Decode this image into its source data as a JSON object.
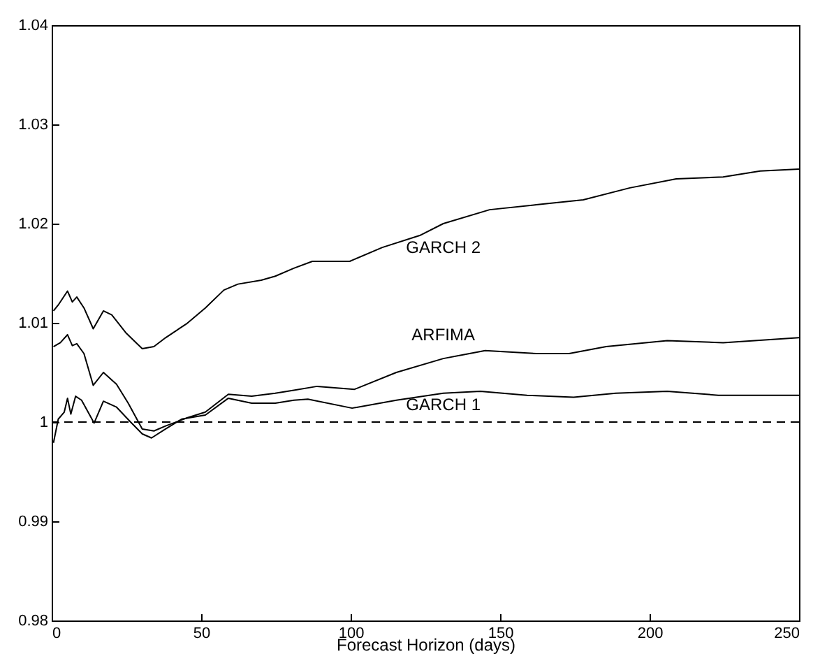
{
  "chart_data": {
    "type": "line",
    "xlabel": "Forecast Horizon (days)",
    "xlim": [
      0,
      250
    ],
    "xticks": [
      0,
      50,
      100,
      150,
      200,
      250
    ],
    "ylim": [
      0.98,
      1.04
    ],
    "yticks": [
      0.98,
      0.99,
      1,
      1.01,
      1.02,
      1.03,
      1.04
    ],
    "grid": false,
    "line_style": "solid",
    "ref_lines": [
      {
        "axis": "y",
        "value": 1,
        "line_style": "dashed",
        "color": "#000000"
      }
    ],
    "series": [
      {
        "name": "GARCH 2",
        "color": "#000000",
        "x": [
          0.6,
          2.2,
          5.3,
          6.9,
          8.4,
          10.8,
          13.9,
          17.3,
          20.1,
          24.8,
          30.3,
          34.2,
          38.1,
          45.1,
          51.4,
          57.6,
          62.3,
          70.1,
          74.8,
          81,
          87.2,
          99.7,
          110.6,
          123.1,
          131,
          146.5,
          162.1,
          177.8,
          193.4,
          208.9,
          224.6,
          237,
          250
        ],
        "values": [
          1.0112,
          1.0118,
          1.0132,
          1.0121,
          1.0126,
          1.0115,
          1.0094,
          1.0112,
          1.0108,
          1.009,
          1.0074,
          1.0076,
          1.0085,
          1.0099,
          1.0115,
          1.0133,
          1.0139,
          1.0143,
          1.0147,
          1.0155,
          1.0162,
          1.0162,
          1.0176,
          1.0188,
          1.02,
          1.0214,
          1.0219,
          1.0224,
          1.0236,
          1.0245,
          1.0247,
          1.0253,
          1.0255
        ]
      },
      {
        "name": "ARFIMA",
        "color": "#000000",
        "x": [
          0.6,
          2.9,
          5.3,
          6.9,
          8.4,
          10.8,
          13.9,
          17.3,
          21.7,
          25.6,
          30.3,
          34.2,
          38.1,
          45.1,
          51.4,
          59.1,
          66.9,
          74.8,
          81,
          88.8,
          101.3,
          115.3,
          131,
          145,
          162.1,
          173.1,
          185.5,
          205.9,
          224.6,
          250
        ],
        "values": [
          1.0076,
          1.008,
          1.0088,
          1.0077,
          1.0079,
          1.0069,
          1.0037,
          1.005,
          1.0038,
          1.0019,
          0.9993,
          0.9991,
          0.9996,
          1.0004,
          1.001,
          1.0028,
          1.0026,
          1.0029,
          1.0032,
          1.0036,
          1.0033,
          1.005,
          1.0064,
          1.0072,
          1.0069,
          1.0069,
          1.0076,
          1.0082,
          1.008,
          1.0085
        ]
      },
      {
        "name": "GARCH 1",
        "color": "#000000",
        "x": [
          0.6,
          2.2,
          4.2,
          5.3,
          6.4,
          8,
          10,
          14.2,
          17.3,
          21.7,
          26.4,
          30.3,
          33.4,
          38.1,
          43.5,
          51.4,
          59.1,
          66.9,
          74.8,
          81,
          85.7,
          100.5,
          115.3,
          131,
          143.4,
          159,
          174.6,
          188.7,
          205.9,
          223,
          250
        ],
        "values": [
          0.9979,
          1.0003,
          1.001,
          1.0024,
          1.0008,
          1.0026,
          1.0022,
          0.9999,
          1.0021,
          1.0015,
          1,
          0.9988,
          0.9984,
          0.9993,
          1.0003,
          1.0007,
          1.0024,
          1.0019,
          1.0019,
          1.0022,
          1.0023,
          1.0014,
          1.0022,
          1.0029,
          1.0031,
          1.0027,
          1.0025,
          1.0029,
          1.0031,
          1.0027,
          1.0027
        ]
      }
    ]
  }
}
